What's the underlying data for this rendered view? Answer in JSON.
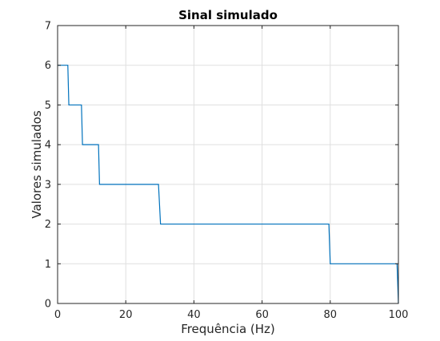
{
  "chart_data": {
    "type": "line",
    "title": "Sinal simulado",
    "xlabel": "Frequência (Hz)",
    "ylabel": "Valores simulados",
    "xlim": [
      0,
      100
    ],
    "ylim": [
      0,
      7
    ],
    "xticks": [
      0,
      20,
      40,
      60,
      80,
      100
    ],
    "yticks": [
      0,
      1,
      2,
      3,
      4,
      5,
      6,
      7
    ],
    "grid": true,
    "series": [
      {
        "color": "#0072BD",
        "x": [
          0,
          3,
          3.3,
          7,
          7.3,
          12,
          12.3,
          29.6,
          30.2,
          79.6,
          80,
          99.6,
          100
        ],
        "y": [
          6,
          6,
          5,
          5,
          4,
          4,
          3,
          3,
          2,
          2,
          1,
          1,
          0
        ]
      }
    ]
  }
}
